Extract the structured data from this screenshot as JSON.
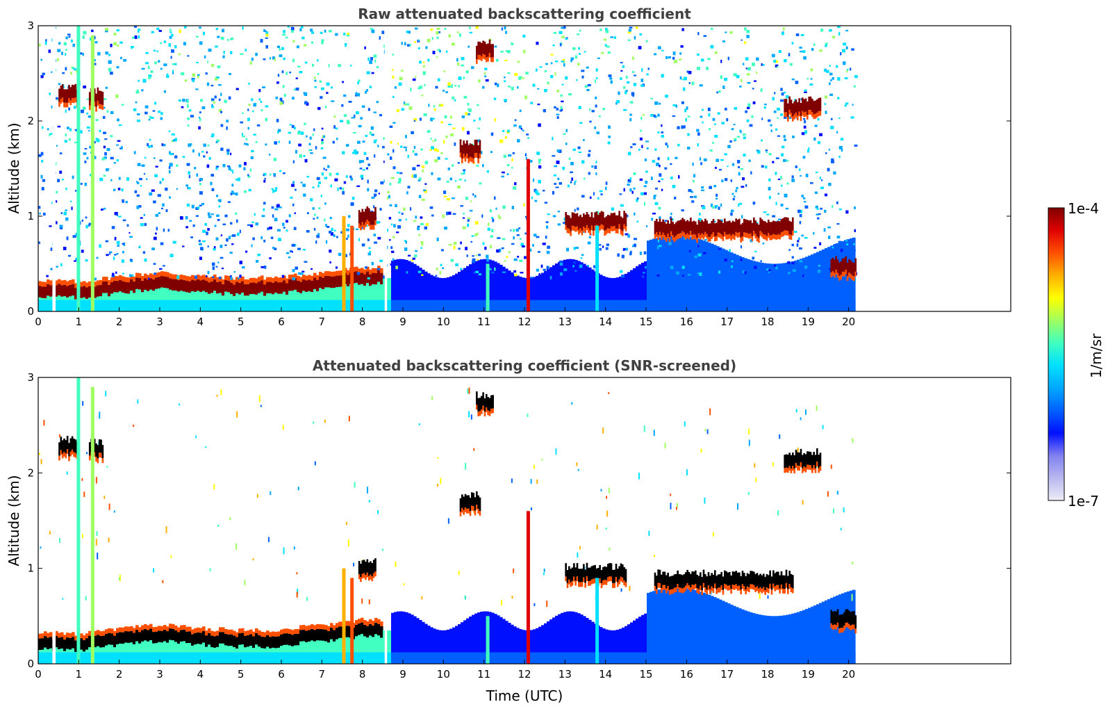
{
  "chart_data": [
    {
      "type": "heatmap",
      "title": "Raw attenuated backscattering coefficient",
      "xlabel": "",
      "ylabel": "Altitude (km)",
      "xlim": [
        0,
        24
      ],
      "ylim": [
        0,
        3
      ],
      "xticks": [
        "0",
        "1",
        "2",
        "3",
        "4",
        "5",
        "6",
        "7",
        "8",
        "9",
        "10",
        "11",
        "12",
        "13",
        "14",
        "15",
        "16",
        "17",
        "18",
        "19",
        "20"
      ],
      "yticks": [
        "0",
        "1",
        "2",
        "3"
      ],
      "data_end_time": 20.15,
      "boundary_layer": [
        [
          0,
          0.22
        ],
        [
          1,
          0.2
        ],
        [
          2,
          0.26
        ],
        [
          3,
          0.3
        ],
        [
          4,
          0.26
        ],
        [
          5,
          0.24
        ],
        [
          6,
          0.25
        ],
        [
          7,
          0.3
        ],
        [
          8,
          0.35
        ]
      ],
      "cloud_layers": [
        {
          "t0": 0.5,
          "t1": 0.95,
          "alt": 2.28
        },
        {
          "t0": 1.25,
          "t1": 1.6,
          "alt": 2.25
        },
        {
          "t0": 7.9,
          "t1": 8.3,
          "alt": 1.0
        },
        {
          "t0": 10.4,
          "t1": 10.9,
          "alt": 1.7
        },
        {
          "t0": 10.8,
          "t1": 11.2,
          "alt": 2.75
        },
        {
          "t0": 13.0,
          "t1": 14.5,
          "alt": 0.95
        },
        {
          "t0": 15.2,
          "t1": 18.6,
          "alt": 0.88
        },
        {
          "t0": 18.4,
          "t1": 19.3,
          "alt": 2.15
        },
        {
          "t0": 19.55,
          "t1": 20.15,
          "alt": 0.47
        }
      ]
    },
    {
      "type": "heatmap",
      "title": "Attenuated backscattering coefficient (SNR-screened)",
      "xlabel": "Time (UTC)",
      "ylabel": "Altitude (km)",
      "xlim": [
        0,
        24
      ],
      "ylim": [
        0,
        3
      ],
      "xticks": [
        "0",
        "1",
        "2",
        "3",
        "4",
        "5",
        "6",
        "7",
        "8",
        "9",
        "10",
        "11",
        "12",
        "13",
        "14",
        "15",
        "16",
        "17",
        "18",
        "19",
        "20"
      ],
      "yticks": [
        "0",
        "1",
        "2",
        "3"
      ],
      "data_end_time": 20.15
    }
  ],
  "colorbar": {
    "max_label": "1e-4",
    "min_label": "1e-7",
    "unit_label": "1/m/sr",
    "colors": [
      "#ededf8",
      "#b8b8f0",
      "#8080f0",
      "#0010ff",
      "#0060ff",
      "#00a8ff",
      "#00e0ff",
      "#40ffc0",
      "#a0ff60",
      "#ffff00",
      "#ffb000",
      "#ff5000",
      "#e00000",
      "#800000"
    ]
  }
}
